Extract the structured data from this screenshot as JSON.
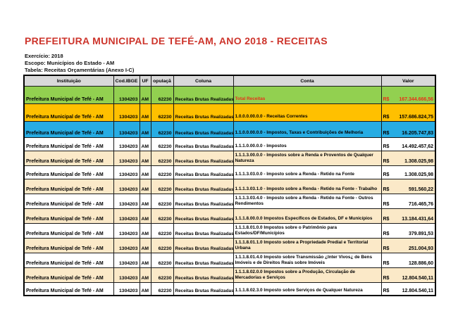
{
  "page": {
    "title": "PREFEITURA MUNICIPAL DE TEFÉ-AM, ANO 2018 - RECEITAS",
    "meta": [
      "Exercício: 2018",
      "Escopo: Municípios do Estado - AM",
      "Tabela: Receitas Orçamentárias (Anexo I-C)"
    ]
  },
  "colors": {
    "title_red": "#CD342B",
    "accent_red": "#E8311A",
    "row_green": "#92D050",
    "row_gold": "#FFC000",
    "row_blue": "#27ACE3",
    "row_cream": "#FBE9C8",
    "row_white": "#FFFFFF",
    "header_gray": "#D9D9D9"
  },
  "table": {
    "headers": [
      "Instituição",
      "Cod.IBGE",
      "UF",
      "opulaçã",
      "Coluna",
      "Conta",
      "Valor"
    ],
    "currency_symbol": "R$",
    "rows": [
      {
        "institution": "Prefeitura Municipal de Tefé - AM",
        "ibge": "1304203",
        "uf": "AM",
        "population": "62230",
        "column": "Receitas Brutas Realizadas",
        "account": "Total Receitas",
        "value": "167.344.666,56",
        "style": "green",
        "accent": "red"
      },
      {
        "institution": "Prefeitura Municipal de Tefé - AM",
        "ibge": "1304203",
        "uf": "AM",
        "population": "62230",
        "column": "Receitas Brutas Realizadas",
        "account": "1.0.0.0.00.0.0 - Receitas Correntes",
        "value": "157.686.824,75",
        "style": "gold",
        "accent": "black"
      },
      {
        "institution": "Prefeitura Municipal de Tefé - AM",
        "ibge": "1304203",
        "uf": "AM",
        "population": "62230",
        "column": "Receitas Brutas Realizadas",
        "account": "1.1.0.0.00.0.0 - Impostos, Taxas e Contribuições de Melhoria",
        "value": "16.205.747,83",
        "style": "blue",
        "accent": "black"
      },
      {
        "institution": "Prefeitura Municipal de Tefé - AM",
        "ibge": "1304203",
        "uf": "AM",
        "population": "62230",
        "column": "Receitas Brutas Realizadas",
        "account": "1.1.1.0.00.0.0 - Impostos",
        "value": "14.492.457,62",
        "style": "white",
        "accent": "black"
      },
      {
        "institution": "Prefeitura Municipal de Tefé - AM",
        "ibge": "1304203",
        "uf": "AM",
        "population": "62230",
        "column": "Receitas Brutas Realizadas",
        "account": "1.1.1.3.00.0.0 - Impostos sobre a Renda e Proventos de Qualquer Natureza",
        "value": "1.308.025,98",
        "style": "cream",
        "accent": "black"
      },
      {
        "institution": "Prefeitura Municipal de Tefé - AM",
        "ibge": "1304203",
        "uf": "AM",
        "population": "62230",
        "column": "Receitas Brutas Realizadas",
        "account": "1.1.1.3.03.0.0 - Imposto sobre a Renda - Retido na Fonte",
        "value": "1.308.025,98",
        "style": "white",
        "accent": "black"
      },
      {
        "institution": "Prefeitura Municipal de Tefé - AM",
        "ibge": "1304203",
        "uf": "AM",
        "population": "62230",
        "column": "Receitas Brutas Realizadas",
        "account": "1.1.1.3.03.1.0 - Imposto sobre a Renda - Retido na Fonte - Trabalho",
        "value": "591.560,22",
        "style": "cream",
        "accent": "black"
      },
      {
        "institution": "Prefeitura Municipal de Tefé - AM",
        "ibge": "1304203",
        "uf": "AM",
        "population": "62230",
        "column": "Receitas Brutas Realizadas",
        "account": "1.1.1.3.03.4.0 - Imposto sobre a Renda - Retido na Fonte - Outros Rendimentos",
        "value": "716.465,76",
        "style": "white",
        "accent": "black"
      },
      {
        "institution": "Prefeitura Municipal de Tefé - AM",
        "ibge": "1304203",
        "uf": "AM",
        "population": "62230",
        "column": "Receitas Brutas Realizadas",
        "account": "1.1.1.8.00.0.0 Impostos Específicos de Estados, DF e Municípios",
        "value": "13.184.431,64",
        "style": "cream",
        "accent": "black"
      },
      {
        "institution": "Prefeitura Municipal de Tefé - AM",
        "ibge": "1304203",
        "uf": "AM",
        "population": "62230",
        "column": "Receitas Brutas Realizadas",
        "account": "1.1.1.8.01.0.0 Impostos sobre o Patrimônio para Estados/DF/Municípios",
        "value": "379.891,53",
        "style": "white",
        "accent": "black"
      },
      {
        "institution": "Prefeitura Municipal de Tefé - AM",
        "ibge": "1304203",
        "uf": "AM",
        "population": "62230",
        "column": "Receitas Brutas Realizadas",
        "account": "1.1.1.8.01.1.0 Imposto sobre a Propriedade Predial e Territorial Urbana",
        "value": "251.004,93",
        "style": "cream",
        "accent": "black"
      },
      {
        "institution": "Prefeitura Municipal de Tefé - AM",
        "ibge": "1304203",
        "uf": "AM",
        "population": "62230",
        "column": "Receitas Brutas Realizadas",
        "account": "1.1.1.8.01.4.0 Imposto sobre Transmissão ¿Inter Vivos¿ de Bens Imóveis e de Direitos Reais sobre Imóveis",
        "value": "128.886,60",
        "style": "white",
        "accent": "black"
      },
      {
        "institution": "Prefeitura Municipal de Tefé - AM",
        "ibge": "1304203",
        "uf": "AM",
        "population": "62230",
        "column": "Receitas Brutas Realizadas",
        "account": "1.1.1.8.02.0.0 Impostos sobre a Produção, Circulação de Mercadorias e Serviços",
        "value": "12.804.540,11",
        "style": "cream",
        "accent": "black"
      },
      {
        "institution": "Prefeitura Municipal de Tefé - AM",
        "ibge": "1304203",
        "uf": "AM",
        "population": "62230",
        "column": "Receitas Brutas Realizadas",
        "account": "1.1.1.8.02.3.0 Imposto sobre Serviços de Qualquer Natureza",
        "value": "12.804.540,11",
        "style": "white",
        "accent": "black"
      }
    ]
  }
}
